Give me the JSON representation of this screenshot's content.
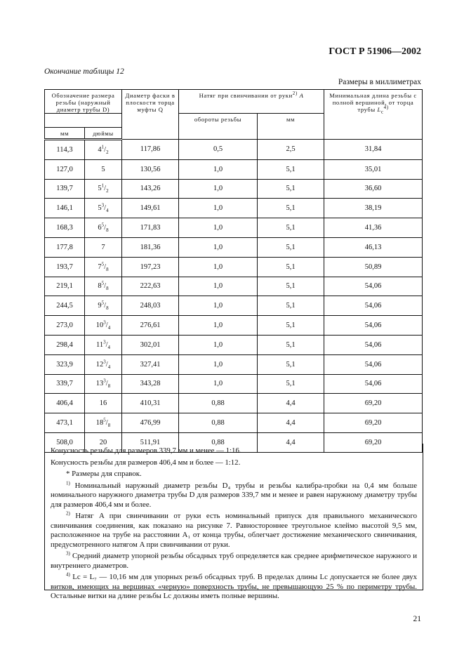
{
  "doc_id": "ГОСТ Р 51906—2002",
  "table_caption": "Окончание таблицы 12",
  "units_note": "Размеры в миллиметрах",
  "page_number": "21",
  "headers": {
    "designation": "Обозначение размера резьбы (наружный диаметр трубы D)",
    "mm": "мм",
    "inches": "дюймы",
    "chamfer": "Диаметр фаски в плоскости торца муфты Q",
    "makeup": "Натяг при свинчивании от руки",
    "makeup_sup": "2)",
    "makeup_sym": "A",
    "turns": "обороты резьбы",
    "makeup_mm": "мм",
    "minlen": "Минимальная длина резьбы с полной вершиной, от торца трубы",
    "minlen_sym": "L",
    "minlen_sub": "c",
    "minlen_sup": "4)"
  },
  "rows": [
    {
      "mm": "114,3",
      "in": "4",
      "num": "1",
      "den": "2",
      "q": "117,86",
      "turns": "0,5",
      "amm": "2,5",
      "lc": "31,84"
    },
    {
      "mm": "127,0",
      "in": "5",
      "num": "",
      "den": "",
      "q": "130,56",
      "turns": "1,0",
      "amm": "5,1",
      "lc": "35,01"
    },
    {
      "mm": "139,7",
      "in": "5",
      "num": "1",
      "den": "2",
      "q": "143,26",
      "turns": "1,0",
      "amm": "5,1",
      "lc": "36,60"
    },
    {
      "mm": "146,1",
      "in": "5",
      "num": "3",
      "den": "4",
      "q": "149,61",
      "turns": "1,0",
      "amm": "5,1",
      "lc": "38,19"
    },
    {
      "mm": "168,3",
      "in": "6",
      "num": "5",
      "den": "8",
      "q": "171,83",
      "turns": "1,0",
      "amm": "5,1",
      "lc": "41,36"
    },
    {
      "mm": "177,8",
      "in": "7",
      "num": "",
      "den": "",
      "q": "181,36",
      "turns": "1,0",
      "amm": "5,1",
      "lc": "46,13"
    },
    {
      "mm": "193,7",
      "in": "7",
      "num": "5",
      "den": "8",
      "q": "197,23",
      "turns": "1,0",
      "amm": "5,1",
      "lc": "50,89"
    },
    {
      "mm": "219,1",
      "in": "8",
      "num": "5",
      "den": "8",
      "q": "222,63",
      "turns": "1,0",
      "amm": "5,1",
      "lc": "54,06"
    },
    {
      "mm": "244,5",
      "in": "9",
      "num": "5",
      "den": "8",
      "q": "248,03",
      "turns": "1,0",
      "amm": "5,1",
      "lc": "54,06"
    },
    {
      "mm": "273,0",
      "in": "10",
      "num": "3",
      "den": "4",
      "q": "276,61",
      "turns": "1,0",
      "amm": "5,1",
      "lc": "54,06"
    },
    {
      "mm": "298,4",
      "in": "11",
      "num": "3",
      "den": "4",
      "q": "302,01",
      "turns": "1,0",
      "amm": "5,1",
      "lc": "54,06"
    },
    {
      "mm": "323,9",
      "in": "12",
      "num": "3",
      "den": "4",
      "q": "327,41",
      "turns": "1,0",
      "amm": "5,1",
      "lc": "54,06"
    },
    {
      "mm": "339,7",
      "in": "13",
      "num": "3",
      "den": "8",
      "q": "343,28",
      "turns": "1,0",
      "amm": "5,1",
      "lc": "54,06"
    },
    {
      "mm": "406,4",
      "in": "16",
      "num": "",
      "den": "",
      "q": "410,31",
      "turns": "0,88",
      "amm": "4,4",
      "lc": "69,20"
    },
    {
      "mm": "473,1",
      "in": "18",
      "num": "5",
      "den": "8",
      "q": "476,99",
      "turns": "0,88",
      "amm": "4,4",
      "lc": "69,20"
    },
    {
      "mm": "508,0",
      "in": "20",
      "num": "",
      "den": "",
      "q": "511,91",
      "turns": "0,88",
      "amm": "4,4",
      "lc": "69,20"
    }
  ],
  "notes": {
    "taper1": "Конусность резьбы для размеров 339,7 мм и менее — 1:16.",
    "taper2": "Конусность резьбы для размеров 406,4 мм и более — 1:12.",
    "star": "* Размеры для справок.",
    "n1_mark": "1)",
    "n1": "Номинальный наружный диаметр резьбы D₄ трубы и резьбы калибра-пробки на 0,4 мм больше номинального наружного диаметра трубы D для размеров 339,7 мм и менее и равен наружному диаметру трубы для размеров 406,4 мм и более.",
    "n2_mark": "2)",
    "n2": "Натяг A при свинчивании от руки есть номинальный припуск для правильного механического свинчивания соединения, как показано на рисунке 7. Равностороннее треугольное клеймо высотой 9,5 мм, расположенное на трубе на расстоянии A₁ от конца трубы, облегчает достижение механического свинчивания, предусмотренного натягом A при свинчивании от руки.",
    "n3_mark": "3)",
    "n3": "Средний диаметр упорной резьбы обсадных труб определяется как среднее арифметическое наружного и внутреннего диаметров.",
    "n4_mark": "4)",
    "n4": "Lc = L₇ — 10,16 мм для упорных резьб обсадных труб. В пределах длины Lc допускается не более двух витков, имеющих на вершинах «черную» поверхность трубы, не превышающую 25 % по периметру трубы. Остальные витки на длине резьбы Lc должны иметь полные вершины."
  }
}
